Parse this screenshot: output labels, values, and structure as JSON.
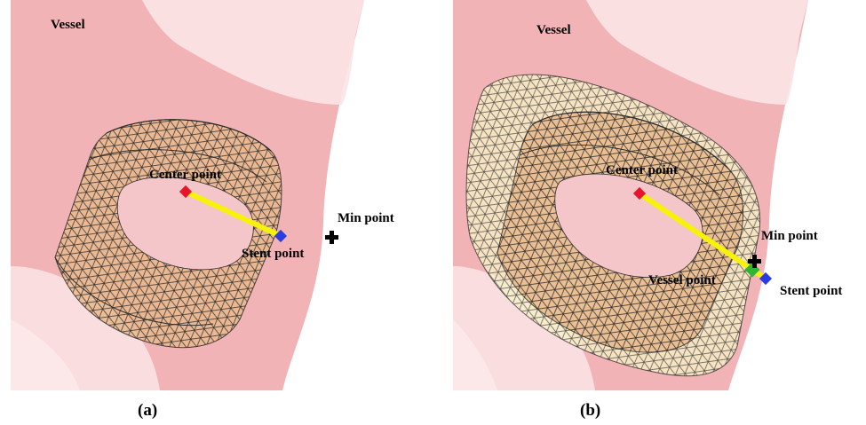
{
  "panel_a": {
    "vessel_label": "Vessel",
    "center_label": "Center point",
    "stent_label": "Stent point",
    "min_label": "Min point",
    "caption": "(a)"
  },
  "panel_b": {
    "vessel_label": "Vessel",
    "center_label": "Center point",
    "min_label": "Min point",
    "vessel_point_label": "Vessel point",
    "stent_label": "Stent point",
    "caption": "(b)"
  },
  "colors": {
    "vessel": "#f2b3b7",
    "vessel_light": "#fbe4e5",
    "stent": "#e9b98c",
    "mesh": "#2b2b2b",
    "vessel_stent": "#f7f3c6",
    "center_marker": "#e8152a",
    "stent_marker": "#2a3ee0",
    "min_marker": "#000000",
    "vessel_marker": "#2fb52f",
    "radius_line": "#f6f20a"
  }
}
